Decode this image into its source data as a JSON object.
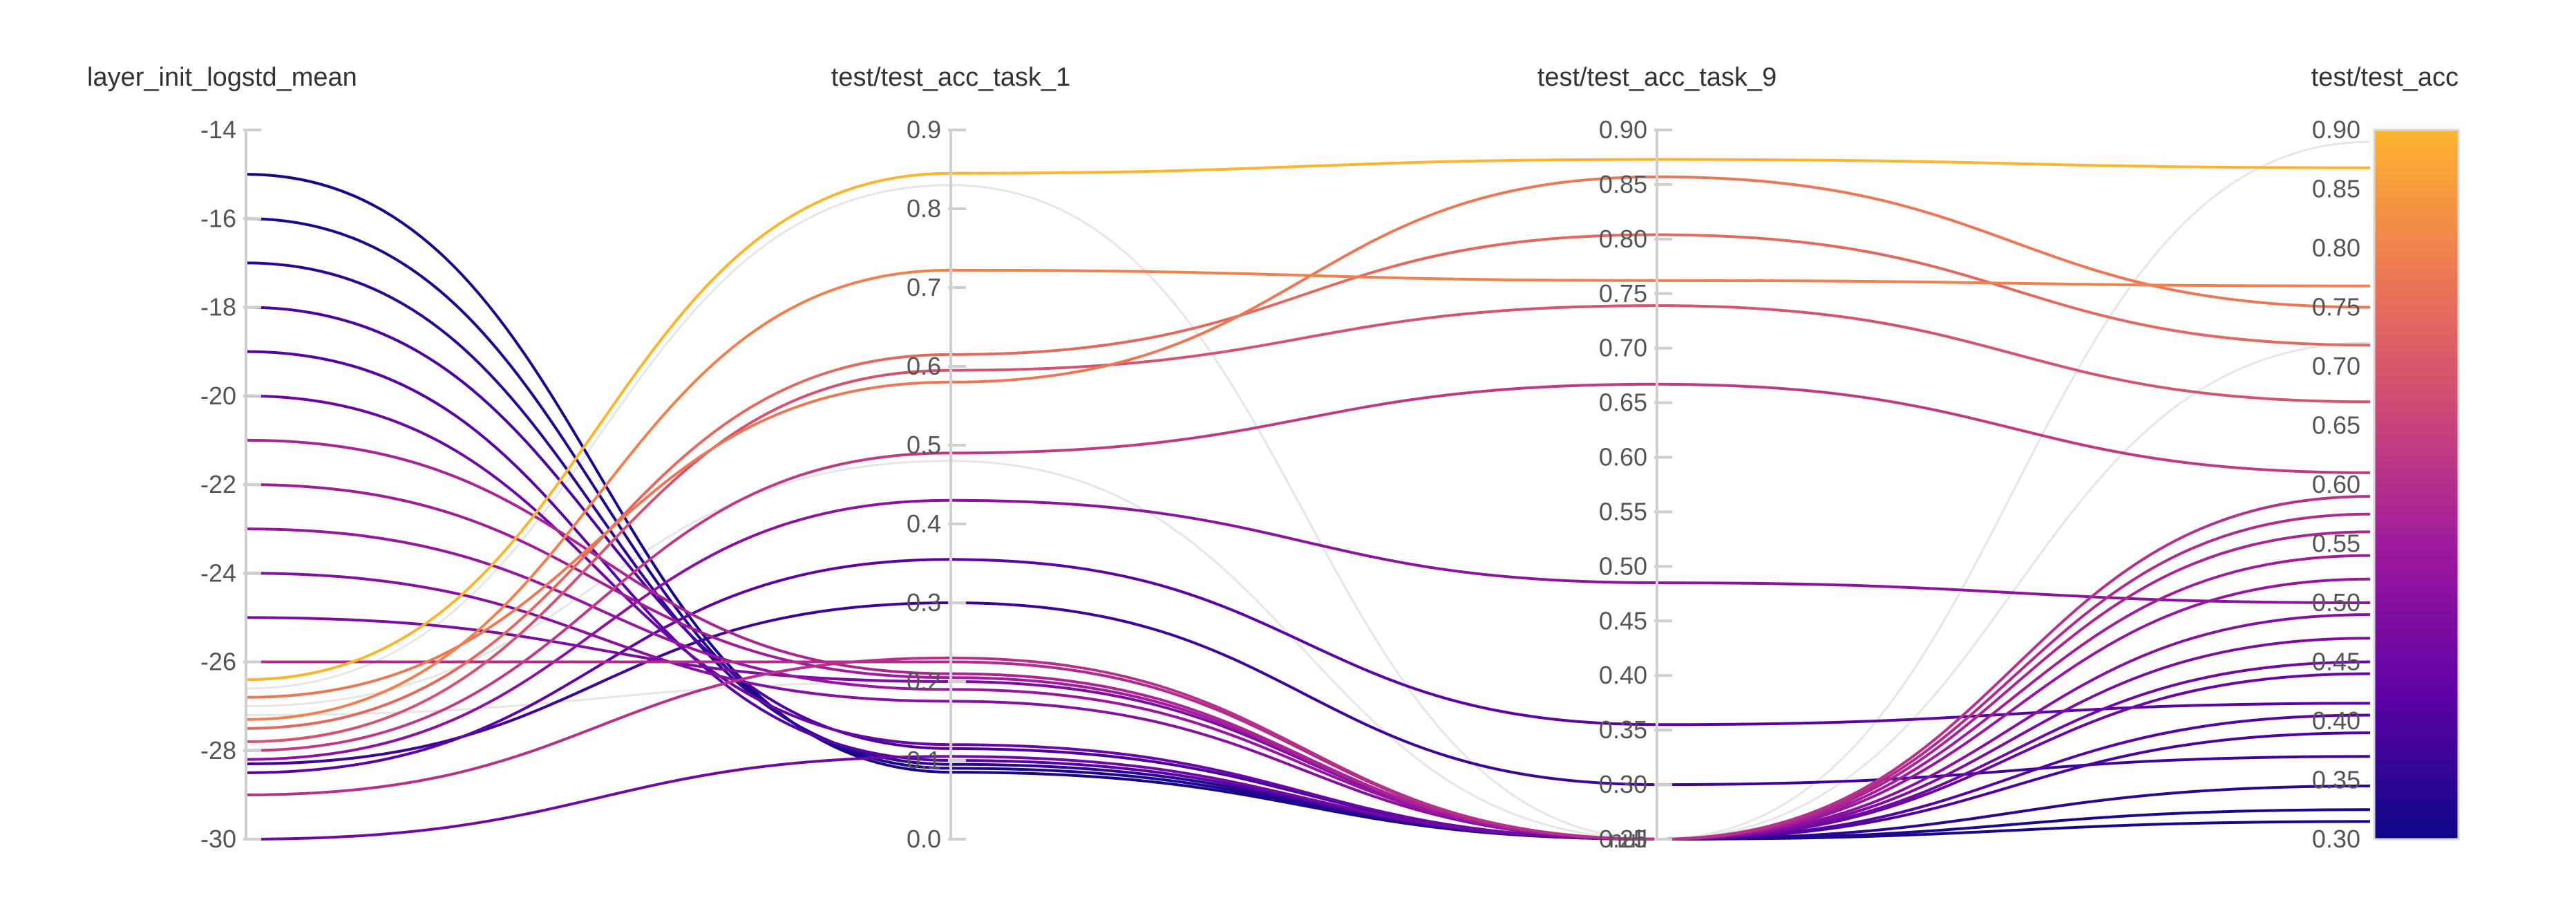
{
  "chart_data": {
    "type": "parallel_coordinates",
    "axes": [
      {
        "name": "layer_init_logstd_mean",
        "range": [
          -30,
          -14
        ],
        "ticks": [
          "-14",
          "-16",
          "-18",
          "-20",
          "-22",
          "-24",
          "-26",
          "-28",
          "-30"
        ],
        "tick_values": [
          -14,
          -16,
          -18,
          -20,
          -22,
          -24,
          -26,
          -28,
          -30
        ]
      },
      {
        "name": "test/test_acc_task_1",
        "range": [
          0,
          0.9
        ],
        "ticks": [
          "0.9",
          "0.8",
          "0.7",
          "0.6",
          "0.5",
          "0.4",
          "0.3",
          "0.2",
          "0.1",
          "0.0"
        ],
        "tick_values": [
          0.9,
          0.8,
          0.7,
          0.6,
          0.5,
          0.4,
          0.3,
          0.2,
          0.1,
          0.0
        ]
      },
      {
        "name": "test/test_acc_task_9",
        "range": [
          0.25,
          0.9
        ],
        "null_label": "null",
        "ticks": [
          "0.90",
          "0.85",
          "0.80",
          "0.75",
          "0.70",
          "0.65",
          "0.60",
          "0.55",
          "0.50",
          "0.45",
          "0.40",
          "0.35",
          "0.30",
          "0.25"
        ],
        "tick_values": [
          0.9,
          0.85,
          0.8,
          0.75,
          0.7,
          0.65,
          0.6,
          0.55,
          0.5,
          0.45,
          0.4,
          0.35,
          0.3,
          0.25
        ]
      },
      {
        "name": "test/test_acc",
        "range": [
          0.3,
          0.9
        ],
        "ticks": [
          "0.90",
          "0.85",
          "0.80",
          "0.75",
          "0.70",
          "0.65",
          "0.60",
          "0.55",
          "0.50",
          "0.45",
          "0.40",
          "0.35",
          "0.30"
        ],
        "tick_values": [
          0.9,
          0.85,
          0.8,
          0.75,
          0.7,
          0.65,
          0.6,
          0.55,
          0.5,
          0.45,
          0.4,
          0.35,
          0.3
        ]
      }
    ],
    "colorbar": {
      "axis": "test/test_acc",
      "range": [
        0.3,
        0.9
      ],
      "stops": [
        "#0d0887",
        "#5c01a6",
        "#9c179e",
        "#cc4778",
        "#ed7953",
        "#fdb42f",
        "#f0f921"
      ]
    },
    "runs": [
      {
        "values": [
          -26.4,
          0.845,
          0.873,
          0.868
        ]
      },
      {
        "values": [
          -27.3,
          0.722,
          0.762,
          0.768
        ]
      },
      {
        "values": [
          -26.8,
          0.58,
          0.857,
          0.75
        ]
      },
      {
        "values": [
          -27.5,
          0.615,
          0.804,
          0.718
        ]
      },
      {
        "values": [
          -27.8,
          0.595,
          0.739,
          0.67
        ]
      },
      {
        "values": [
          -28.0,
          0.49,
          0.667,
          0.61
        ]
      },
      {
        "values": [
          -29.0,
          0.23,
          null,
          0.59
        ]
      },
      {
        "values": [
          -26.0,
          0.225,
          null,
          0.575
        ]
      },
      {
        "values": [
          -21.0,
          0.21,
          null,
          0.56
        ]
      },
      {
        "values": [
          -22.0,
          0.205,
          null,
          0.54
        ]
      },
      {
        "values": [
          -28.2,
          0.43,
          0.485,
          0.5
        ]
      },
      {
        "values": [
          -23.0,
          0.19,
          null,
          0.52
        ]
      },
      {
        "values": [
          -24.0,
          0.175,
          null,
          0.49
        ]
      },
      {
        "values": [
          -25.0,
          0.2,
          null,
          0.47
        ]
      },
      {
        "values": [
          -30.0,
          0.105,
          null,
          0.45
        ]
      },
      {
        "values": [
          -20.0,
          0.12,
          null,
          0.44
        ]
      },
      {
        "values": [
          -28.5,
          0.355,
          0.355,
          0.415
        ]
      },
      {
        "values": [
          -19.0,
          0.1,
          null,
          0.405
        ]
      },
      {
        "values": [
          -18.0,
          0.115,
          null,
          0.39
        ]
      },
      {
        "values": [
          -28.3,
          0.3,
          0.3,
          0.37
        ]
      },
      {
        "values": [
          -17.0,
          0.095,
          null,
          0.345
        ]
      },
      {
        "values": [
          -16.0,
          0.09,
          null,
          0.325
        ]
      },
      {
        "values": [
          -15.0,
          0.085,
          null,
          0.315
        ]
      }
    ],
    "ghost_runs": [
      {
        "values": [
          -26.6,
          0.83,
          null,
          0.89
        ]
      },
      {
        "values": [
          -27.0,
          0.48,
          null,
          0.72
        ]
      },
      {
        "values": [
          -27.2,
          0.2,
          null,
          0.56
        ]
      }
    ]
  }
}
